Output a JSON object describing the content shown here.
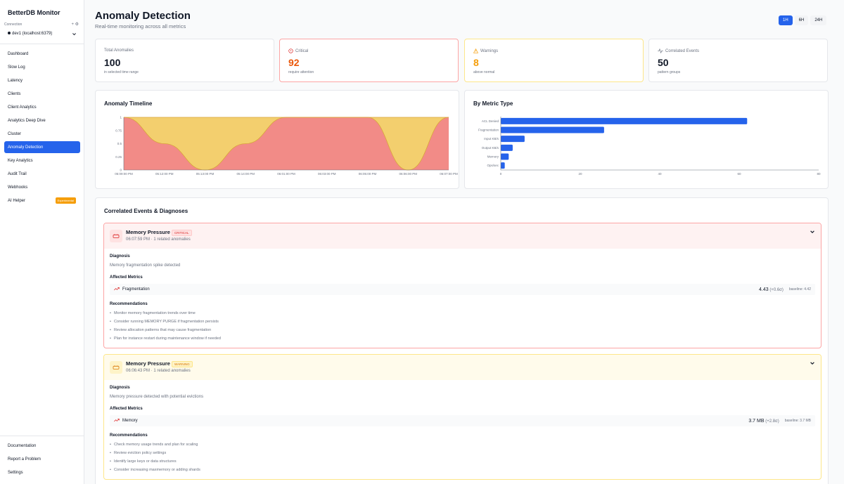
{
  "sidebar": {
    "brand": "BetterDB Monitor",
    "connection_label": "Connection",
    "connection_icons": "+ ⚙",
    "connection_value": "dev1 (localhost:6379)",
    "nav": [
      {
        "label": "Dashboard"
      },
      {
        "label": "Slow Log"
      },
      {
        "label": "Latency"
      },
      {
        "label": "Clients"
      },
      {
        "label": "Client Analytics"
      },
      {
        "label": "Analytics Deep Dive"
      },
      {
        "label": "Cluster"
      },
      {
        "label": "Anomaly Detection",
        "active": true
      },
      {
        "label": "Key Analytics"
      },
      {
        "label": "Audit Trail"
      },
      {
        "label": "Webhooks"
      },
      {
        "label": "AI Helper",
        "badge": "Experimental"
      }
    ],
    "bottom": [
      {
        "label": "Documentation"
      },
      {
        "label": "Report a Problem"
      },
      {
        "label": "Settings"
      }
    ]
  },
  "header": {
    "title": "Anomaly Detection",
    "subtitle": "Real-time monitoring across all metrics",
    "ranges": [
      {
        "label": "1H",
        "active": true
      },
      {
        "label": "6H",
        "active": false
      },
      {
        "label": "24H",
        "active": false
      }
    ]
  },
  "stats": [
    {
      "label": "Total Anomalies",
      "value": "100",
      "foot": "in selected time range",
      "icon": ""
    },
    {
      "label": "Critical",
      "value": "92",
      "foot": "require attention",
      "icon": "alert-circle-icon"
    },
    {
      "label": "Warnings",
      "value": "8",
      "foot": "above normal",
      "icon": "warning-triangle-icon"
    },
    {
      "label": "Correlated Events",
      "value": "50",
      "foot": "pattern groups",
      "icon": "activity-icon"
    }
  ],
  "colors": {
    "accent": "#2563eb",
    "critical": "#dc2626",
    "critical_value": "#ea580c",
    "warning": "#f59e0b",
    "timeline_critical_fill": "#f28b87",
    "timeline_warning_fill": "#f3cf6e"
  },
  "timeline": {
    "title": "Anomaly Timeline",
    "chart_data": {
      "type": "area",
      "x": [
        "05:09:00 PM",
        "05:12:00 PM",
        "05:13:00 PM",
        "05:14:00 PM",
        "06:01:00 PM",
        "06:03:00 PM",
        "06:05:00 PM",
        "06:06:00 PM",
        "06:07:00 PM"
      ],
      "series": [
        {
          "values": [
            1,
            0.5,
            0,
            0.5,
            1,
            1,
            1,
            0,
            1
          ]
        },
        {
          "values": [
            0,
            0.5,
            1,
            0.5,
            0,
            0,
            0,
            1,
            0
          ]
        }
      ],
      "yticks": [
        "0",
        "0.25",
        "0.5",
        "0.75",
        "1"
      ],
      "ylim": [
        0,
        1
      ],
      "stacked": true,
      "grid": false
    }
  },
  "by_metric": {
    "title": "By Metric Type",
    "chart_data": {
      "type": "bar",
      "orientation": "horizontal",
      "categories": [
        "ACL Denied",
        "Fragmentation",
        "Input KB/s",
        "Output KB/s",
        "Memory",
        "Ops/sec"
      ],
      "values": [
        62,
        26,
        6,
        3,
        2,
        1
      ],
      "xticks": [
        "0",
        "20",
        "40",
        "60",
        "80"
      ],
      "xlim": [
        0,
        80
      ],
      "grid": false
    }
  },
  "events": {
    "title": "Correlated Events & Diagnoses",
    "diagnosis_label": "Diagnosis",
    "affected_label": "Affected Metrics",
    "recommendations_label": "Recommendations",
    "items": [
      {
        "title": "Memory Pressure",
        "severity": "CRITICAL",
        "meta": "06:07:59 PM · 1 related anomalies",
        "diagnosis": "Memory fragmentation spike detected",
        "metric_name": "Fragmentation",
        "metric_value": "4.43",
        "metric_delta": "(+0.6σ)",
        "metric_baseline": "baseline: 4.42",
        "recommendations": [
          "Monitor memory fragmentation trends over time",
          "Consider running MEMORY PURGE if fragmentation persists",
          "Review allocation patterns that may cause fragmentation",
          "Plan for instance restart during maintenance window if needed"
        ]
      },
      {
        "title": "Memory Pressure",
        "severity": "WARNING",
        "meta": "06:06:43 PM · 1 related anomalies",
        "diagnosis": "Memory pressure detected with potential evictions",
        "metric_name": "Memory",
        "metric_value": "3.7 MB",
        "metric_delta": "(+2.8σ)",
        "metric_baseline": "baseline: 3.7 MB",
        "recommendations": [
          "Check memory usage trends and plan for scaling",
          "Review eviction policy settings",
          "Identify large keys or data structures",
          "Consider increasing maxmemory or adding shards"
        ]
      }
    ]
  }
}
